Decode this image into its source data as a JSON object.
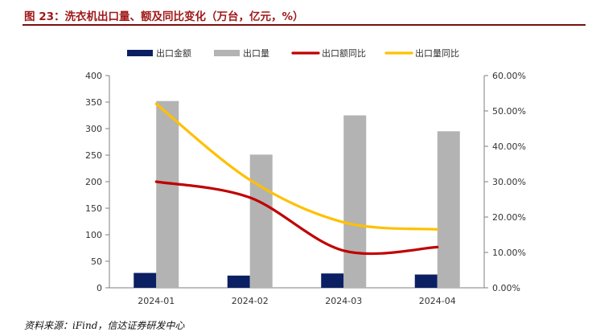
{
  "title": "图 23：洗衣机出口量、额及同比变化（万台，亿元，%）",
  "source": "资料来源：iFind，信达证券研发中心",
  "chart_data": {
    "type": "bar",
    "categories": [
      "2024-01",
      "2024-02",
      "2024-03",
      "2024-04"
    ],
    "series": [
      {
        "name": "出口金额",
        "kind": "bar",
        "axis": "left",
        "color": "#0b1f63",
        "values": [
          28,
          23,
          27,
          25
        ]
      },
      {
        "name": "出口量",
        "kind": "bar",
        "axis": "left",
        "color": "#b3b3b3",
        "values": [
          352,
          251,
          325,
          295
        ]
      },
      {
        "name": "出口额同比",
        "kind": "line",
        "axis": "right",
        "color": "#c00000",
        "values": [
          30,
          25.5,
          10.5,
          11.5
        ]
      },
      {
        "name": "出口量同比",
        "kind": "line",
        "axis": "right",
        "color": "#ffc000",
        "values": [
          52,
          30.5,
          18.5,
          16.5
        ]
      }
    ],
    "y_left": {
      "lim": [
        0,
        400
      ],
      "ticks": [
        "0",
        "50",
        "100",
        "150",
        "200",
        "250",
        "300",
        "350",
        "400"
      ]
    },
    "y_right": {
      "lim": [
        0,
        60
      ],
      "ticks": [
        "0.00%",
        "10.00%",
        "20.00%",
        "30.00%",
        "40.00%",
        "50.00%",
        "60.00%"
      ]
    },
    "grid": false,
    "legend_position": "top-center"
  }
}
